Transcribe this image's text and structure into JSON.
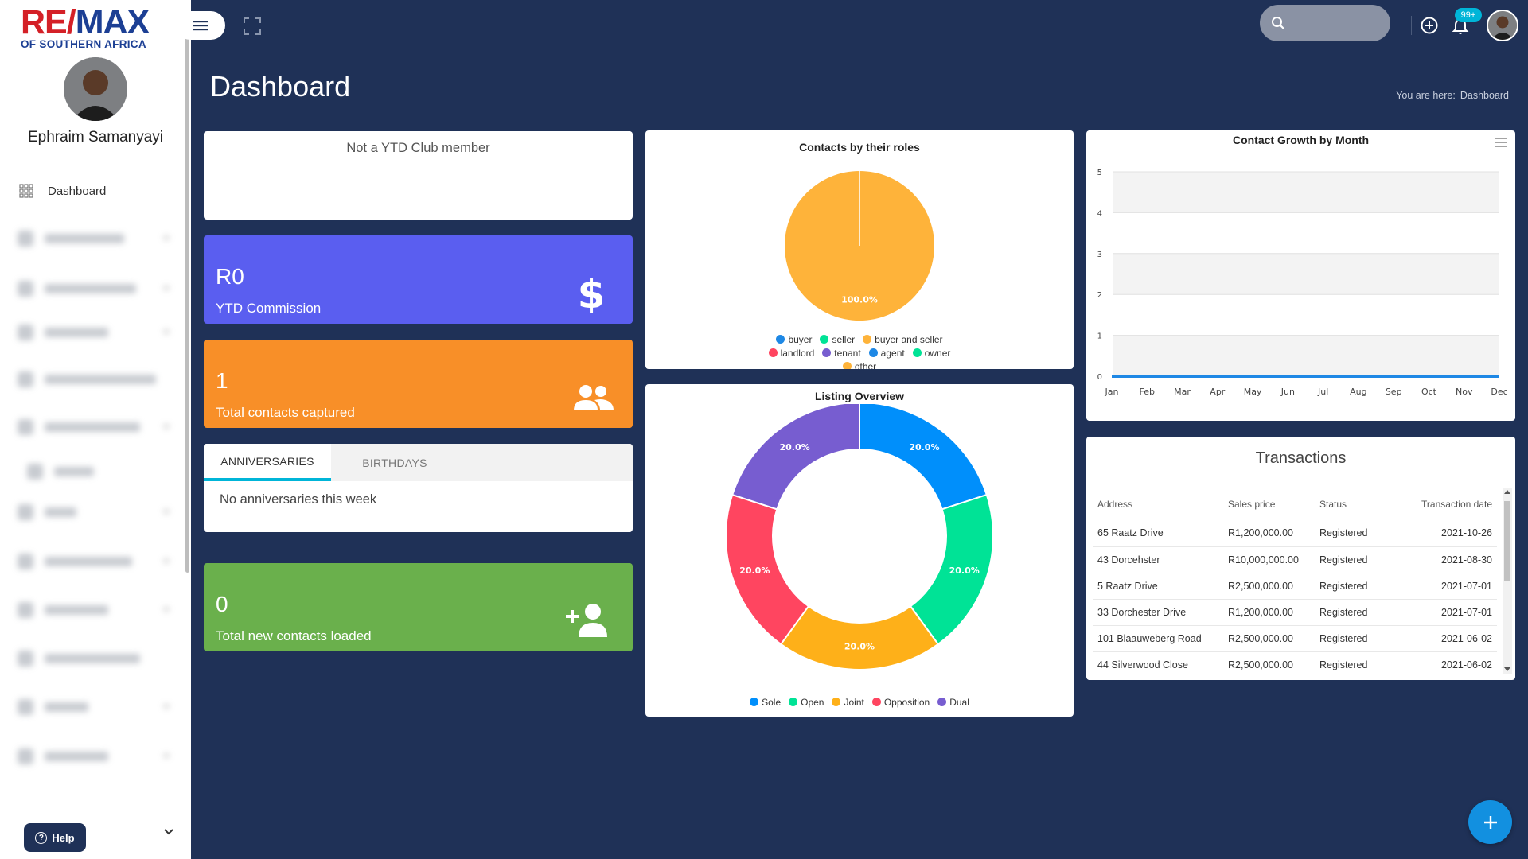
{
  "brand": {
    "logo_re": "RE/",
    "logo_max": "MAX",
    "logo_sub": "OF SOUTHERN AFRICA"
  },
  "user": {
    "name": "Ephraim Samanyayi"
  },
  "sidebar": {
    "items": [
      {
        "label": "Dashboard",
        "icon": "grid-icon"
      }
    ],
    "help_label": "Help"
  },
  "topbar": {
    "search_placeholder": "",
    "notification_count": "99+"
  },
  "header": {
    "title": "Dashboard",
    "breadcrumb_prefix": "You are here:",
    "breadcrumb_current": "Dashboard"
  },
  "ytd_club": {
    "text": "Not a YTD Club member"
  },
  "stats": {
    "commission": {
      "value": "R0",
      "label": "YTD Commission",
      "color": "#5a5ef0"
    },
    "contacts": {
      "value": "1",
      "label": "Total contacts captured",
      "color": "#f88f28"
    },
    "new_contacts": {
      "value": "0",
      "label": "Total new contacts loaded",
      "color": "#6ab04c"
    }
  },
  "anniversaries": {
    "tabs": [
      "ANNIVERSARIES",
      "BIRTHDAYS"
    ],
    "empty_text": "No anniversaries this week"
  },
  "transactions": {
    "title": "Transactions",
    "columns": [
      "Address",
      "Sales price",
      "Status",
      "Transaction date"
    ],
    "rows": [
      [
        "65 Raatz Drive",
        "R1,200,000.00",
        "Registered",
        "2021-10-26"
      ],
      [
        "43 Dorcehster",
        "R10,000,000.00",
        "Registered",
        "2021-08-30"
      ],
      [
        "5 Raatz Drive",
        "R2,500,000.00",
        "Registered",
        "2021-07-01"
      ],
      [
        "33 Dorchester Drive",
        "R1,200,000.00",
        "Registered",
        "2021-07-01"
      ],
      [
        "101 Blaauweberg Road",
        "R2,500,000.00",
        "Registered",
        "2021-06-02"
      ],
      [
        "44 Silverwood Close",
        "R2,500,000.00",
        "Registered",
        "2021-06-02"
      ]
    ]
  },
  "chart_data": [
    {
      "type": "pie",
      "title": "Contacts by their roles",
      "categories": [
        "buyer",
        "seller",
        "buyer and seller",
        "landlord",
        "tenant",
        "agent",
        "owner",
        "other"
      ],
      "values": [
        0,
        0,
        100,
        0,
        0,
        0,
        0,
        0
      ],
      "colors": [
        "#1e88e5",
        "#00e396",
        "#feb33a",
        "#ff4560",
        "#775dd0",
        "#1e88e5",
        "#00e396",
        "#feb33a"
      ],
      "data_labels": [
        "100.0%"
      ],
      "legend": "bottom"
    },
    {
      "type": "pie",
      "title": "Listing Overview",
      "categories": [
        "Sole",
        "Open",
        "Joint",
        "Opposition",
        "Dual"
      ],
      "values": [
        20,
        20,
        20,
        20,
        20
      ],
      "colors": [
        "#008ffb",
        "#00e396",
        "#feb019",
        "#ff4560",
        "#775dd0"
      ],
      "data_labels": [
        "20.0%",
        "20.0%",
        "20.0%",
        "20.0%",
        "20.0%"
      ],
      "legend": "bottom"
    },
    {
      "type": "line",
      "title": "Contact Growth by Month",
      "categories": [
        "Jan",
        "Feb",
        "Mar",
        "Apr",
        "May",
        "Jun",
        "Jul",
        "Aug",
        "Sep",
        "Oct",
        "Nov",
        "Dec"
      ],
      "values": [
        0,
        0,
        0,
        0,
        0,
        0,
        0,
        0,
        0,
        0,
        0,
        0
      ],
      "ylim": [
        0,
        5
      ],
      "yticks": [
        "0",
        "1",
        "2",
        "3",
        "4",
        "5"
      ],
      "color": "#1e88e5",
      "grid": true
    }
  ]
}
